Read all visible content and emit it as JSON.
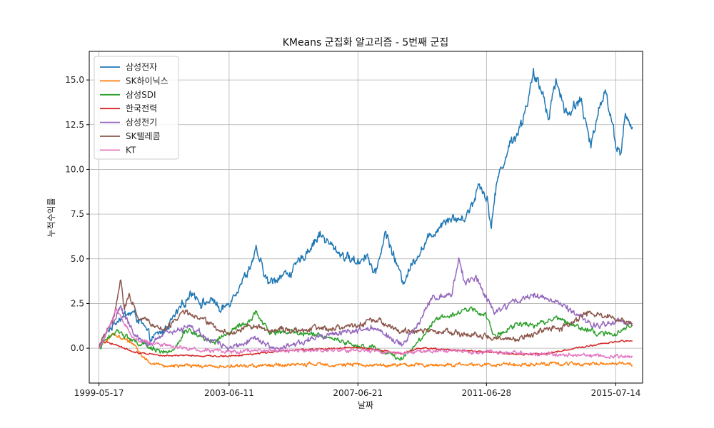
{
  "chart_data": {
    "type": "line",
    "title": "KMeans 군집화 알고리즘 - 5번째 군집",
    "xlabel": "날짜",
    "ylabel": "누적수익률",
    "x_start": "1999-05-17",
    "x_end": "2016-01-20",
    "xlim": [
      "1999-01-26",
      "2016-05-15"
    ],
    "ylim": [
      -1.95,
      16.6
    ],
    "x_tick_labels": [
      "1999-05-17",
      "2003-06-11",
      "2007-06-21",
      "2011-06-28",
      "2015-07-14"
    ],
    "y_ticks": [
      0.0,
      2.5,
      5.0,
      7.5,
      10.0,
      12.5,
      15.0
    ],
    "y_tick_labels": [
      "0.0",
      "2.5",
      "5.0",
      "7.5",
      "10.0",
      "12.5",
      "15.0"
    ],
    "grid": true,
    "legend_position": "top-left",
    "series": [
      {
        "name": "삼성전자",
        "color": "#1f77b4",
        "volatility": 0.15,
        "anchors": [
          [
            "1999-05-17",
            0
          ],
          [
            "1999-09-01",
            1.0
          ],
          [
            "2000-01-01",
            1.7
          ],
          [
            "2000-06-01",
            2.0
          ],
          [
            "2000-09-01",
            1.5
          ],
          [
            "2001-01-01",
            0.5
          ],
          [
            "2001-06-01",
            1.0
          ],
          [
            "2001-12-01",
            2.2
          ],
          [
            "2002-04-15",
            3.2
          ],
          [
            "2002-08-01",
            2.5
          ],
          [
            "2003-01-01",
            2.7
          ],
          [
            "2003-03-01",
            2.0
          ],
          [
            "2003-06-01",
            2.5
          ],
          [
            "2004-01-01",
            4.2
          ],
          [
            "2004-04-15",
            5.4
          ],
          [
            "2004-09-01",
            3.6
          ],
          [
            "2005-01-01",
            4.0
          ],
          [
            "2005-06-01",
            4.3
          ],
          [
            "2005-12-01",
            5.5
          ],
          [
            "2006-04-15",
            6.4
          ],
          [
            "2006-08-01",
            5.8
          ],
          [
            "2007-01-01",
            5.2
          ],
          [
            "2007-06-21",
            4.8
          ],
          [
            "2007-10-01",
            5.3
          ],
          [
            "2008-01-01",
            4.0
          ],
          [
            "2008-05-01",
            6.5
          ],
          [
            "2008-11-15",
            3.7
          ],
          [
            "2009-04-01",
            5.0
          ],
          [
            "2009-10-01",
            6.3
          ],
          [
            "2010-04-01",
            7.3
          ],
          [
            "2010-10-01",
            7.2
          ],
          [
            "2011-01-15",
            8.0
          ],
          [
            "2011-04-01",
            9.2
          ],
          [
            "2011-07-01",
            8.5
          ],
          [
            "2011-08-20",
            6.8
          ],
          [
            "2011-11-01",
            9.5
          ],
          [
            "2012-04-01",
            11.5
          ],
          [
            "2012-08-01",
            12.5
          ],
          [
            "2012-12-15",
            15.2
          ],
          [
            "2013-04-01",
            14.3
          ],
          [
            "2013-06-01",
            13.0
          ],
          [
            "2013-09-01",
            15.0
          ],
          [
            "2014-01-01",
            13.0
          ],
          [
            "2014-06-01",
            14.0
          ],
          [
            "2014-10-01",
            11.2
          ],
          [
            "2015-01-01",
            13.5
          ],
          [
            "2015-03-15",
            14.5
          ],
          [
            "2015-07-14",
            11.5
          ],
          [
            "2015-09-01",
            10.8
          ],
          [
            "2015-11-01",
            13.0
          ],
          [
            "2016-01-20",
            12.2
          ]
        ]
      },
      {
        "name": "SK하이닉스",
        "color": "#ff7f0e",
        "volatility": 0.06,
        "anchors": [
          [
            "1999-05-17",
            0
          ],
          [
            "1999-08-01",
            0.4
          ],
          [
            "1999-11-01",
            0.8
          ],
          [
            "2000-03-01",
            0.5
          ],
          [
            "2000-07-01",
            0.2
          ],
          [
            "2000-10-01",
            -0.5
          ],
          [
            "2001-01-01",
            -0.85
          ],
          [
            "2001-06-01",
            -0.98
          ],
          [
            "2003-06-11",
            -1.02
          ],
          [
            "2006-01-01",
            -0.9
          ],
          [
            "2008-06-01",
            -0.95
          ],
          [
            "2011-06-28",
            -0.92
          ],
          [
            "2014-01-01",
            -0.87
          ],
          [
            "2015-07-14",
            -0.85
          ],
          [
            "2016-01-20",
            -0.9
          ]
        ]
      },
      {
        "name": "삼성SDI",
        "color": "#2ca02c",
        "volatility": 0.09,
        "anchors": [
          [
            "1999-05-17",
            0
          ],
          [
            "1999-09-01",
            0.6
          ],
          [
            "2000-01-01",
            1.0
          ],
          [
            "2000-06-01",
            0.4
          ],
          [
            "2001-01-01",
            0.0
          ],
          [
            "2001-09-01",
            -0.3
          ],
          [
            "2002-02-01",
            1.0
          ],
          [
            "2002-06-01",
            0.8
          ],
          [
            "2003-01-01",
            0.3
          ],
          [
            "2003-06-11",
            0.9
          ],
          [
            "2004-02-01",
            1.5
          ],
          [
            "2004-04-15",
            2.0
          ],
          [
            "2004-09-01",
            0.9
          ],
          [
            "2005-06-01",
            0.9
          ],
          [
            "2006-06-01",
            0.7
          ],
          [
            "2007-06-21",
            0.1
          ],
          [
            "2008-01-01",
            0.0
          ],
          [
            "2008-11-01",
            -0.6
          ],
          [
            "2009-06-01",
            0.5
          ],
          [
            "2009-12-01",
            1.7
          ],
          [
            "2010-06-01",
            1.9
          ],
          [
            "2011-01-01",
            2.2
          ],
          [
            "2011-06-28",
            1.8
          ],
          [
            "2011-10-01",
            0.6
          ],
          [
            "2012-06-01",
            1.4
          ],
          [
            "2013-01-01",
            1.3
          ],
          [
            "2013-09-01",
            1.7
          ],
          [
            "2014-06-01",
            1.2
          ],
          [
            "2015-01-01",
            0.8
          ],
          [
            "2015-07-14",
            0.8
          ],
          [
            "2016-01-20",
            1.3
          ]
        ]
      },
      {
        "name": "한국전력",
        "color": "#d62728",
        "volatility": 0.03,
        "anchors": [
          [
            "1999-05-17",
            0
          ],
          [
            "1999-07-01",
            0.4
          ],
          [
            "1999-12-01",
            0.2
          ],
          [
            "2000-06-01",
            -0.2
          ],
          [
            "2001-06-01",
            -0.4
          ],
          [
            "2003-06-11",
            -0.45
          ],
          [
            "2005-06-01",
            -0.1
          ],
          [
            "2007-06-21",
            0.05
          ],
          [
            "2008-11-01",
            -0.3
          ],
          [
            "2009-06-01",
            0.0
          ],
          [
            "2011-06-28",
            -0.2
          ],
          [
            "2012-06-01",
            -0.35
          ],
          [
            "2013-06-01",
            -0.3
          ],
          [
            "2014-06-01",
            0.05
          ],
          [
            "2015-07-14",
            0.35
          ],
          [
            "2016-01-20",
            0.45
          ]
        ]
      },
      {
        "name": "삼성전기",
        "color": "#9467bd",
        "volatility": 0.1,
        "anchors": [
          [
            "1999-05-17",
            0
          ],
          [
            "1999-08-01",
            0.8
          ],
          [
            "1999-11-01",
            1.5
          ],
          [
            "2000-01-15",
            2.3
          ],
          [
            "2000-03-01",
            1.8
          ],
          [
            "2000-07-01",
            0.7
          ],
          [
            "2001-01-01",
            0.2
          ],
          [
            "2001-06-01",
            0.8
          ],
          [
            "2002-04-15",
            1.2
          ],
          [
            "2002-10-01",
            0.5
          ],
          [
            "2003-06-11",
            0.0
          ],
          [
            "2004-04-01",
            0.6
          ],
          [
            "2005-01-01",
            -0.1
          ],
          [
            "2006-01-01",
            0.5
          ],
          [
            "2007-06-21",
            1.0
          ],
          [
            "2008-01-01",
            1.1
          ],
          [
            "2008-11-01",
            0.2
          ],
          [
            "2009-06-01",
            1.5
          ],
          [
            "2009-10-01",
            2.8
          ],
          [
            "2010-06-01",
            3.0
          ],
          [
            "2010-08-15",
            4.9
          ],
          [
            "2010-11-01",
            3.6
          ],
          [
            "2011-03-01",
            4.0
          ],
          [
            "2011-06-28",
            2.8
          ],
          [
            "2011-10-01",
            2.0
          ],
          [
            "2012-06-01",
            2.6
          ],
          [
            "2012-12-01",
            3.0
          ],
          [
            "2013-09-01",
            2.6
          ],
          [
            "2014-06-01",
            1.7
          ],
          [
            "2015-01-01",
            1.2
          ],
          [
            "2015-07-14",
            1.5
          ],
          [
            "2016-01-20",
            1.4
          ]
        ]
      },
      {
        "name": "SK텔레콤",
        "color": "#8c564b",
        "volatility": 0.1,
        "anchors": [
          [
            "1999-05-17",
            0
          ],
          [
            "1999-07-01",
            0.5
          ],
          [
            "1999-11-01",
            1.6
          ],
          [
            "2000-01-20",
            3.8
          ],
          [
            "2000-03-01",
            2.3
          ],
          [
            "2000-05-01",
            3.0
          ],
          [
            "2000-08-01",
            1.8
          ],
          [
            "2001-01-01",
            1.4
          ],
          [
            "2001-06-01",
            1.0
          ],
          [
            "2002-01-01",
            2.0
          ],
          [
            "2002-06-01",
            1.8
          ],
          [
            "2003-01-01",
            1.2
          ],
          [
            "2003-06-11",
            0.8
          ],
          [
            "2004-01-01",
            1.2
          ],
          [
            "2005-01-01",
            1.0
          ],
          [
            "2006-06-01",
            1.1
          ],
          [
            "2007-06-21",
            1.3
          ],
          [
            "2008-01-01",
            1.6
          ],
          [
            "2008-11-01",
            0.9
          ],
          [
            "2009-06-01",
            1.0
          ],
          [
            "2010-06-01",
            0.9
          ],
          [
            "2011-06-28",
            0.6
          ],
          [
            "2012-01-01",
            0.5
          ],
          [
            "2012-06-01",
            0.5
          ],
          [
            "2013-06-01",
            1.1
          ],
          [
            "2014-01-01",
            1.2
          ],
          [
            "2014-10-01",
            2.0
          ],
          [
            "2015-01-01",
            1.9
          ],
          [
            "2015-07-14",
            1.6
          ],
          [
            "2016-01-20",
            1.4
          ]
        ]
      },
      {
        "name": "KT",
        "color": "#e377c2",
        "volatility": 0.07,
        "anchors": [
          [
            "1999-05-17",
            0
          ],
          [
            "1999-09-01",
            1.0
          ],
          [
            "1999-12-01",
            2.2
          ],
          [
            "2000-03-01",
            1.4
          ],
          [
            "2000-06-01",
            0.6
          ],
          [
            "2001-01-01",
            0.3
          ],
          [
            "2002-01-01",
            0.0
          ],
          [
            "2003-06-11",
            -0.2
          ],
          [
            "2005-06-01",
            -0.15
          ],
          [
            "2007-06-21",
            -0.1
          ],
          [
            "2008-11-01",
            -0.3
          ],
          [
            "2009-06-01",
            -0.15
          ],
          [
            "2011-06-28",
            -0.2
          ],
          [
            "2013-06-01",
            -0.35
          ],
          [
            "2015-07-14",
            -0.45
          ],
          [
            "2016-01-20",
            -0.45
          ]
        ]
      }
    ]
  }
}
